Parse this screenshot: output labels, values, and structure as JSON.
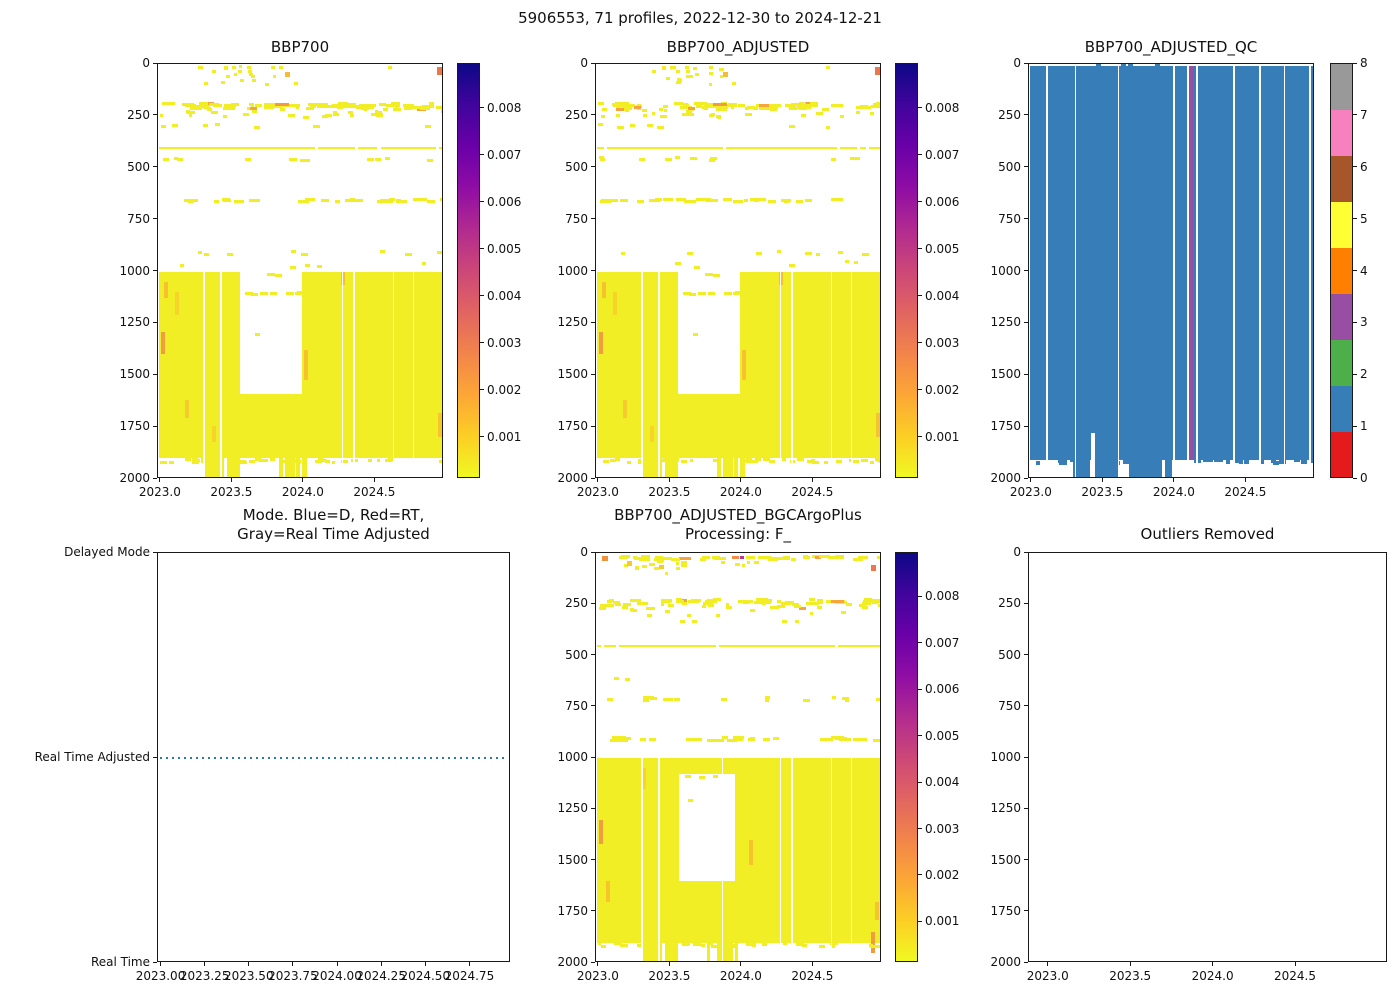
{
  "figure": {
    "title": "5906553, 71 profiles, 2022-12-30 to 2024-12-21"
  },
  "chart_data": {
    "figure_title": "5906553, 71 profiles, 2022-12-30 to 2024-12-21",
    "platform_id": "5906553",
    "n_profiles": 71,
    "date_range": [
      "2022-12-30",
      "2024-12-21"
    ],
    "time_axis_range": [
      2022.98,
      2024.98
    ],
    "depth_axis_range": [
      0,
      2000
    ],
    "colors": {
      "heat_yellow": "#f2ee26",
      "heat_orange": "#f6a43c",
      "qc_blue": "#377eb8",
      "qc_purple": "#984ea3",
      "mode_line_blue": "#2e76b3"
    },
    "panels": [
      {
        "id": "bbp700",
        "type": "heatmap",
        "title": "BBP700",
        "xtick_values": [
          2023.0,
          2023.5,
          2024.0,
          2024.5
        ],
        "xtick_labels": [
          "2023.0",
          "2023.5",
          "2024.0",
          "2024.5"
        ],
        "ytick_values": [
          0,
          250,
          500,
          750,
          1000,
          1250,
          1500,
          1750,
          2000
        ],
        "ytick_labels": [
          "0",
          "250",
          "500",
          "750",
          "1000",
          "1250",
          "1500",
          "1750",
          "2000"
        ],
        "colorbar": {
          "type": "continuous",
          "cmap": "plasma_reversed",
          "tick_labels": [
            "0.001",
            "0.002",
            "0.003",
            "0.004",
            "0.005",
            "0.006",
            "0.007",
            "0.008"
          ]
        },
        "seed": 7,
        "content": {
          "data_t": [
            2022.99,
            2024.97
          ],
          "bands": [
            {
              "d0": 5,
              "d1": 95,
              "n": 12,
              "w0": 3,
              "w1": 5,
              "t0": 2023.25,
              "t1": 2023.95
            },
            {
              "d0": 183,
              "d1": 199,
              "n": 48,
              "w0": 4,
              "w1": 14,
              "p_orange": 0.05
            },
            {
              "d0": 200,
              "d1": 214,
              "n": 34,
              "w0": 3,
              "w1": 10,
              "p_orange": 0.03
            },
            {
              "d0": 216,
              "d1": 252,
              "n": 22,
              "w0": 3,
              "w1": 8
            },
            {
              "d0": 282,
              "d1": 302,
              "n": 7,
              "w0": 4,
              "w1": 7
            },
            {
              "d0": 443,
              "d1": 458,
              "n": 11,
              "w0": 4,
              "w1": 8
            },
            {
              "d0": 645,
              "d1": 657,
              "n": 32,
              "w0": 4,
              "w1": 12
            },
            {
              "d0": 893,
              "d1": 912,
              "n": 8,
              "w0": 4,
              "w1": 7
            },
            {
              "d0": 940,
              "d1": 975,
              "n": 5,
              "w0": 4,
              "w1": 6
            },
            {
              "d0": 1897,
              "d1": 1914,
              "n": 40,
              "w0": 3,
              "w1": 8
            }
          ],
          "lines": [
            {
              "d": 400,
              "breaks": 5
            }
          ],
          "block": {
            "d0": 1000,
            "d1": 1900
          },
          "notch": {
            "t0": 2023.555,
            "t1": 2023.985,
            "d0": 1000,
            "d1": 1590
          },
          "notch_dashes": [
            [
              2023.745,
              1008,
              8
            ],
            [
              2023.8,
              1014,
              7
            ],
            [
              2023.585,
              1098,
              8
            ],
            [
              2023.63,
              1102,
              7
            ],
            [
              2023.69,
              1100,
              8
            ],
            [
              2023.76,
              1098,
              7
            ],
            [
              2023.875,
              1100,
              8
            ],
            [
              2023.94,
              1100,
              6
            ],
            [
              2023.955,
              1096,
              5
            ],
            [
              2023.66,
              1298,
              5
            ]
          ],
          "streaks": [
            [
              2023.0,
              1290,
              1400,
              "#f29c42"
            ],
            [
              2023.02,
              1050,
              1130,
              "#f6c12e"
            ],
            [
              2023.1,
              1100,
              1210,
              "#f7d42a"
            ],
            [
              2023.17,
              1620,
              1705,
              "#f6cb2d"
            ],
            [
              2023.36,
              1745,
              1820,
              "#f7d42a"
            ],
            [
              2024.0,
              1380,
              1525,
              "#f6c32e"
            ],
            [
              2024.26,
              1000,
              1065,
              "#f7c030"
            ],
            [
              2024.94,
              1680,
              1800,
              "#f6c52e"
            ]
          ],
          "below_cols": [
            [
              2023.3,
              2023.445
            ],
            [
              2023.465,
              2023.555
            ],
            [
              2023.825,
              2023.855
            ],
            [
              2023.865,
              2023.935
            ],
            [
              2023.945,
              2023.975
            ],
            [
              2023.99,
              2024.02
            ]
          ],
          "gaps": [
            2023.295,
            2023.415,
            2024.265,
            2024.345,
            2024.62,
            2024.76
          ],
          "specks": [
            [
              2023.44,
              12,
              4,
              4,
              "#f4ee21"
            ],
            [
              2023.5,
              8,
              4,
              3,
              "#f2ee26"
            ],
            [
              2023.54,
              30,
              4,
              3,
              "#f2ee26"
            ],
            [
              2023.55,
              70,
              4,
              3,
              "#f2ee26"
            ],
            [
              2023.6,
              10,
              4,
              3,
              "#f2ee26"
            ],
            [
              2023.61,
              30,
              4,
              3,
              "#f2ee26"
            ],
            [
              2023.63,
              55,
              4,
              3,
              "#f2ee26"
            ],
            [
              2023.77,
              8,
              4,
              3,
              "#f2ee26"
            ],
            [
              2023.87,
              38,
              5,
              5,
              "#f8bb35"
            ],
            [
              2023.93,
              85,
              4,
              3,
              "#f2ee26"
            ],
            [
              2024.59,
              8,
              4,
              3,
              "#f2ee26"
            ],
            [
              2024.93,
              16,
              5,
              3,
              "#ee764d"
            ],
            [
              2024.93,
              28,
              5,
              3,
              "#ee764d"
            ],
            [
              2024.93,
              40,
              5,
              3,
              "#ee764d"
            ],
            [
              2023.8,
              190,
              14,
              3,
              "#f29c42"
            ],
            [
              2023.62,
              205,
              7,
              3,
              "#f6a43c"
            ]
          ]
        }
      },
      {
        "id": "bbp700_adjusted",
        "type": "heatmap",
        "title": "BBP700_ADJUSTED",
        "xtick_values": [
          2023.0,
          2023.5,
          2024.0,
          2024.5
        ],
        "xtick_labels": [
          "2023.0",
          "2023.5",
          "2024.0",
          "2024.5"
        ],
        "ytick_values": [
          0,
          250,
          500,
          750,
          1000,
          1250,
          1500,
          1750,
          2000
        ],
        "ytick_labels": [
          "0",
          "250",
          "500",
          "750",
          "1000",
          "1250",
          "1500",
          "1750",
          "2000"
        ],
        "colorbar": {
          "type": "continuous",
          "cmap": "plasma_reversed",
          "tick_labels": [
            "0.001",
            "0.002",
            "0.003",
            "0.004",
            "0.005",
            "0.006",
            "0.007",
            "0.008"
          ]
        },
        "seed": 11,
        "content_same_as": 0
      },
      {
        "id": "bbp700_adjusted_qc",
        "type": "qc",
        "title": "BBP700_ADJUSTED_QC",
        "xtick_values": [
          2023.0,
          2023.5,
          2024.0,
          2024.5
        ],
        "xtick_labels": [
          "2023.0",
          "2023.5",
          "2024.0",
          "2024.5"
        ],
        "ytick_values": [
          0,
          250,
          500,
          750,
          1000,
          1250,
          1500,
          1750,
          2000
        ],
        "ytick_labels": [
          "0",
          "250",
          "500",
          "750",
          "1000",
          "1250",
          "1500",
          "1750",
          "2000"
        ],
        "colorbar": {
          "type": "discrete",
          "tick_labels": [
            "0",
            "1",
            "2",
            "3",
            "4",
            "5",
            "6",
            "7",
            "8"
          ],
          "colors": [
            "#e41a1c",
            "#377eb8",
            "#4daf4a",
            "#984ea3",
            "#ff7f00",
            "#ffff33",
            "#a65628",
            "#f781bf",
            "#999999"
          ]
        },
        "content": {
          "data_t": [
            2022.99,
            2024.97
          ],
          "base_qc_value": 1,
          "base": "#377eb8",
          "top_depth": 8,
          "bottom_depth": 1908,
          "bumps": [
            2023.45,
            2023.62,
            2023.67,
            2023.86
          ],
          "purple_stripe": {
            "t0": 2024.1,
            "t1": 2024.135,
            "qc_value": 3,
            "color": "#984ea3"
          },
          "gaps": [
            2023.1,
            2023.3,
            2023.6,
            2023.99,
            2024.085,
            2024.15,
            2024.41,
            2024.59,
            2024.76,
            2024.94
          ],
          "below_cols": [
            [
              2023.29,
              2023.41
            ],
            [
              2023.44,
              2023.61
            ],
            [
              2023.68,
              2023.91
            ],
            [
              2023.93,
              2023.98
            ]
          ],
          "special_gap": [
            2023.415,
            2023.44,
            1780,
            2000
          ],
          "ragged": {
            "d0": 1908,
            "d1": 1924,
            "n": 34
          }
        }
      },
      {
        "id": "mode",
        "type": "line",
        "title_lines": [
          "Mode. Blue=D, Red=RT,",
          "Gray=Real Time Adjusted"
        ],
        "xtick_values": [
          2023.0,
          2023.25,
          2023.5,
          2023.75,
          2024.0,
          2024.25,
          2024.5,
          2024.75
        ],
        "xtick_labels": [
          "2023.00",
          "2023.25",
          "2023.50",
          "2023.75",
          "2024.00",
          "2024.25",
          "2024.50",
          "2024.75"
        ],
        "ytick_labels": [
          "Delayed Mode",
          "Real Time Adjusted",
          "Real Time"
        ],
        "line": {
          "at_label": "Real Time Adjusted",
          "y_frac": 0.5,
          "t0": 2022.99,
          "t1": 2024.96,
          "style": "dotted",
          "color": "#2e76b3"
        }
      },
      {
        "id": "bbp700_adjusted_bgcargoplus",
        "type": "heatmap",
        "title_lines": [
          "BBP700_ADJUSTED_BGCArgoPlus",
          "Processing: F_"
        ],
        "xtick_values": [
          2023.0,
          2023.5,
          2024.0,
          2024.5
        ],
        "xtick_labels": [
          "2023.0",
          "2023.5",
          "2024.0",
          "2024.5"
        ],
        "ytick_values": [
          0,
          250,
          500,
          750,
          1000,
          1250,
          1500,
          1750,
          2000
        ],
        "ytick_labels": [
          "0",
          "250",
          "500",
          "750",
          "1000",
          "1250",
          "1500",
          "1750",
          "2000"
        ],
        "colorbar": {
          "type": "continuous",
          "cmap": "plasma_reversed",
          "tick_labels": [
            "0.001",
            "0.002",
            "0.003",
            "0.004",
            "0.005",
            "0.006",
            "0.007",
            "0.008"
          ]
        },
        "seed": 23,
        "content": {
          "data_t": [
            2022.99,
            2024.97
          ],
          "bands": [
            {
              "d0": 10,
              "d1": 24,
              "n": 42,
              "w0": 4,
              "w1": 12,
              "t0": 2023.12,
              "t1": 2024.97,
              "p_orange": 0.07
            },
            {
              "d0": 26,
              "d1": 95,
              "n": 15,
              "w0": 3,
              "w1": 6,
              "t0": 2023.15,
              "t1": 2023.6
            },
            {
              "d0": 30,
              "d1": 70,
              "n": 5,
              "w0": 3,
              "w1": 5,
              "t0": 2023.85,
              "t1": 2024.1
            },
            {
              "d0": 218,
              "d1": 240,
              "n": 46,
              "w0": 4,
              "w1": 13,
              "p_orange": 0.06
            },
            {
              "d0": 241,
              "d1": 266,
              "n": 30,
              "w0": 3,
              "w1": 9,
              "p_orange": 0.02
            },
            {
              "d0": 270,
              "d1": 300,
              "n": 8,
              "w0": 3,
              "w1": 6
            },
            {
              "d0": 318,
              "d1": 338,
              "n": 4,
              "w0": 4,
              "w1": 6
            },
            {
              "d0": 595,
              "d1": 612,
              "n": 2,
              "w0": 5,
              "w1": 6
            },
            {
              "d0": 695,
              "d1": 712,
              "n": 16,
              "w0": 4,
              "w1": 9
            },
            {
              "d0": 893,
              "d1": 908,
              "n": 26,
              "w0": 5,
              "w1": 14
            },
            {
              "d0": 1897,
              "d1": 1914,
              "n": 40,
              "w0": 3,
              "w1": 8
            }
          ],
          "lines": [
            {
              "d": 450,
              "breaks": 4
            }
          ],
          "block": {
            "d0": 1000,
            "d1": 1900
          },
          "notch": {
            "t0": 2023.56,
            "t1": 2023.95,
            "d0": 1078,
            "d1": 1600
          },
          "notch_dashes": [
            [
              2023.6,
              1082,
              6
            ],
            [
              2023.7,
              1086,
              6
            ],
            [
              2023.8,
              1083,
              5
            ],
            [
              2023.62,
              1200,
              5
            ]
          ],
          "streaks": [
            [
              2023.0,
              1300,
              1420,
              "#f29c42"
            ],
            [
              2023.05,
              1600,
              1700,
              "#f6c52e"
            ],
            [
              2023.3,
              1050,
              1150,
              "#f7d42a"
            ],
            [
              2024.05,
              1400,
              1520,
              "#f6c32e"
            ],
            [
              2024.9,
              1850,
              1950,
              "#f29c42"
            ],
            [
              2024.93,
              1700,
              1790,
              "#f6c52e"
            ]
          ],
          "below_cols": [
            [
              2023.3,
              2023.445
            ],
            [
              2023.465,
              2023.555
            ],
            [
              2023.755,
              2023.78
            ],
            [
              2023.825,
              2023.935
            ],
            [
              2023.955,
              2023.975
            ]
          ],
          "gaps": [
            2023.295,
            2023.415,
            2023.86,
            2024.265,
            2024.345,
            2024.62,
            2024.76
          ],
          "specks": [
            [
              2023.02,
              14,
              6,
              5,
              "#f0913c"
            ],
            [
              2023.2,
              40,
              5,
              5,
              "#f6ca2c"
            ],
            [
              2023.25,
              65,
              4,
              4,
              "#f2ee26"
            ],
            [
              2023.42,
              60,
              5,
              4,
              "#f6ca2c"
            ],
            [
              2023.93,
              16,
              7,
              3,
              "#f58d45"
            ],
            [
              2023.99,
              16,
              4,
              3,
              "#b4399b"
            ],
            [
              2024.9,
              58,
              5,
              3,
              "#ee764d"
            ],
            [
              2024.9,
              72,
              5,
              3,
              "#ee764d"
            ]
          ]
        }
      },
      {
        "id": "outliers_removed",
        "type": "empty",
        "title": "Outliers Removed",
        "xtick_values": [
          2023.0,
          2023.5,
          2024.0,
          2024.5
        ],
        "xtick_labels": [
          "2023.0",
          "2023.5",
          "2024.0",
          "2024.5"
        ],
        "ytick_values": [
          0,
          250,
          500,
          750,
          1000,
          1250,
          1500,
          1750,
          2000
        ],
        "ytick_labels": [
          "0",
          "250",
          "500",
          "750",
          "1000",
          "1250",
          "1500",
          "1750",
          "2000"
        ]
      }
    ]
  }
}
